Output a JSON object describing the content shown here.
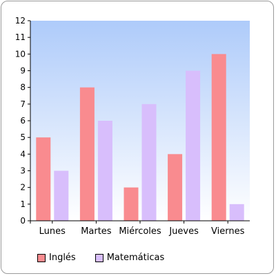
{
  "chart_data": {
    "type": "bar",
    "categories": [
      "Lunes",
      "Martes",
      "Miércoles",
      "Jueves",
      "Viernes"
    ],
    "series": [
      {
        "name": "Inglés",
        "values": [
          5,
          8,
          2,
          4,
          10
        ],
        "color": "#f98b8f"
      },
      {
        "name": "Matemáticas",
        "values": [
          3,
          6,
          7,
          9,
          1
        ],
        "color": "#d8befc"
      }
    ],
    "ylim": [
      0,
      12
    ],
    "yticks": [
      "0",
      "1",
      "2",
      "3",
      "4",
      "5",
      "6",
      "7",
      "8",
      "9",
      "10",
      "11",
      "12"
    ],
    "grid": false,
    "legend_position": "bottom-left",
    "background_gradient": [
      "#aecbfa",
      "#ffffff"
    ]
  }
}
